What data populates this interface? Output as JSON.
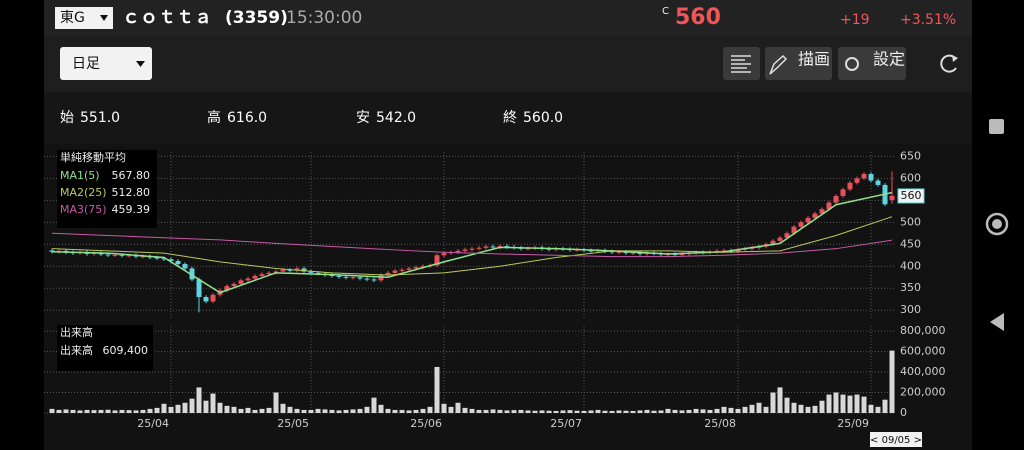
{
  "header": {
    "market": "東G",
    "name": "ｃｏｔｔａ",
    "code": "(3359)",
    "time": "15:30:00",
    "c_mark": "C",
    "price": "560",
    "change": "+19",
    "change_pct": "+3.51%"
  },
  "toolbar": {
    "period": "日足",
    "draw": "描画",
    "settings": "設定"
  },
  "ohlc": {
    "open_label": "始",
    "open": "551.0",
    "high_label": "高",
    "high": "616.0",
    "low_label": "安",
    "low": "542.0",
    "close_label": "終",
    "close": "560.0"
  },
  "chart_data": [
    {
      "type": "candlestick",
      "legend_title": "単純移動平均",
      "up_color": "#e8505b",
      "down_color": "#5fd3e0",
      "ylim": [
        280,
        660
      ],
      "yticks": [
        300,
        350,
        400,
        450,
        500,
        550,
        600,
        650
      ],
      "grid": true,
      "last_price": 560,
      "open": [
        436,
        433,
        435,
        432,
        430,
        432,
        428,
        430,
        427,
        425,
        426,
        424,
        425,
        422,
        423,
        420,
        418,
        416,
        412,
        405,
        395,
        370,
        330,
        320,
        335,
        345,
        355,
        360,
        368,
        372,
        378,
        382,
        385,
        388,
        392,
        390,
        395,
        388,
        385,
        383,
        380,
        378,
        376,
        374,
        375,
        372,
        370,
        368,
        380,
        385,
        390,
        392,
        395,
        398,
        400,
        402,
        425,
        430,
        432,
        435,
        438,
        440,
        442,
        445,
        443,
        446,
        444,
        442,
        440,
        441,
        443,
        440,
        438,
        440,
        439,
        437,
        438,
        436,
        435,
        436,
        434,
        432,
        433,
        430,
        431,
        428,
        430,
        429,
        427,
        428,
        426,
        428,
        430,
        432,
        431,
        433,
        435,
        436,
        434,
        438,
        440,
        442,
        445,
        450,
        458,
        465,
        475,
        490,
        500,
        510,
        520,
        530,
        545,
        560,
        575,
        590,
        600,
        610,
        595,
        585,
        551
      ],
      "high": [
        440,
        439,
        439,
        436,
        436,
        436,
        434,
        434,
        431,
        430,
        430,
        429,
        429,
        427,
        427,
        424,
        422,
        420,
        416,
        409,
        399,
        374,
        334,
        339,
        349,
        359,
        364,
        372,
        376,
        382,
        386,
        389,
        392,
        396,
        396,
        399,
        399,
        392,
        389,
        387,
        384,
        382,
        380,
        379,
        379,
        376,
        374,
        384,
        389,
        394,
        396,
        399,
        402,
        404,
        406,
        429,
        434,
        436,
        439,
        442,
        444,
        446,
        449,
        449,
        450,
        450,
        448,
        446,
        445,
        447,
        447,
        444,
        444,
        444,
        443,
        442,
        442,
        440,
        440,
        440,
        438,
        437,
        437,
        435,
        435,
        434,
        434,
        433,
        432,
        432,
        432,
        434,
        436,
        436,
        437,
        439,
        440,
        440,
        442,
        444,
        446,
        449,
        454,
        462,
        469,
        479,
        494,
        504,
        514,
        524,
        534,
        549,
        564,
        579,
        594,
        604,
        614,
        614,
        599,
        589,
        616
      ],
      "low": [
        429,
        429,
        428,
        426,
        426,
        424,
        424,
        423,
        421,
        421,
        420,
        420,
        418,
        418,
        416,
        414,
        412,
        408,
        401,
        391,
        366,
        295,
        316,
        316,
        331,
        341,
        351,
        356,
        364,
        368,
        374,
        378,
        381,
        384,
        386,
        386,
        384,
        381,
        379,
        376,
        374,
        372,
        370,
        370,
        368,
        366,
        364,
        364,
        376,
        381,
        386,
        388,
        391,
        394,
        396,
        398,
        421,
        426,
        428,
        431,
        434,
        436,
        438,
        439,
        439,
        440,
        438,
        436,
        436,
        437,
        436,
        434,
        434,
        435,
        433,
        433,
        432,
        431,
        431,
        430,
        428,
        428,
        426,
        426,
        424,
        424,
        425,
        423,
        423,
        422,
        422,
        424,
        426,
        427,
        427,
        429,
        431,
        430,
        430,
        434,
        436,
        438,
        441,
        446,
        454,
        461,
        471,
        486,
        496,
        506,
        516,
        526,
        541,
        556,
        571,
        586,
        596,
        591,
        581,
        537,
        542
      ],
      "close": [
        433,
        435,
        432,
        430,
        432,
        428,
        430,
        427,
        425,
        426,
        424,
        425,
        422,
        423,
        420,
        418,
        416,
        412,
        405,
        395,
        370,
        330,
        320,
        335,
        345,
        355,
        360,
        368,
        372,
        378,
        382,
        385,
        388,
        392,
        390,
        395,
        388,
        385,
        383,
        380,
        378,
        376,
        374,
        375,
        372,
        370,
        368,
        380,
        385,
        390,
        392,
        395,
        398,
        400,
        402,
        425,
        430,
        432,
        435,
        438,
        440,
        442,
        445,
        443,
        446,
        444,
        442,
        440,
        441,
        443,
        440,
        438,
        440,
        439,
        437,
        438,
        436,
        435,
        436,
        434,
        432,
        433,
        430,
        431,
        428,
        430,
        429,
        427,
        428,
        426,
        428,
        430,
        432,
        431,
        433,
        435,
        436,
        434,
        438,
        440,
        442,
        445,
        450,
        458,
        465,
        475,
        490,
        500,
        510,
        520,
        530,
        545,
        560,
        575,
        590,
        600,
        610,
        595,
        585,
        541,
        560
      ],
      "series": [
        {
          "name": "MA1(5)",
          "color": "#8fe08f",
          "last_label": "567.80",
          "x": [
            0,
            8,
            16,
            24,
            32,
            40,
            48,
            56,
            64,
            72,
            80,
            88,
            96,
            104,
            112,
            120
          ],
          "values": [
            433,
            430,
            420,
            340,
            385,
            381,
            375,
            410,
            443,
            440,
            435,
            428,
            433,
            452,
            540,
            567.8
          ]
        },
        {
          "name": "MA2(25)",
          "color": "#b9c95a",
          "last_label": "512.80",
          "x": [
            0,
            8,
            16,
            24,
            32,
            40,
            48,
            56,
            64,
            72,
            80,
            88,
            96,
            104,
            112,
            120
          ],
          "values": [
            440,
            435,
            430,
            410,
            395,
            385,
            380,
            385,
            400,
            420,
            435,
            435,
            432,
            435,
            470,
            512.8
          ]
        },
        {
          "name": "MA3(75)",
          "color": "#c85aa8",
          "last_label": "459.39",
          "x": [
            0,
            8,
            16,
            24,
            32,
            40,
            48,
            56,
            64,
            72,
            80,
            88,
            96,
            104,
            112,
            120
          ],
          "values": [
            475,
            470,
            465,
            460,
            452,
            445,
            438,
            432,
            428,
            425,
            422,
            422,
            425,
            430,
            440,
            459.39
          ]
        }
      ]
    },
    {
      "type": "bar",
      "legend_title": "出来高",
      "name": "出来高",
      "value_text": "609,400",
      "color": "#d8d8d8",
      "cursor_label": "< 09/05 >",
      "ylim": [
        0,
        850000
      ],
      "yticks": [
        {
          "value": 800000,
          "label": "800,000"
        },
        {
          "value": 600000,
          "label": "600,000"
        },
        {
          "value": 400000,
          "label": "400,000"
        },
        {
          "value": 200000,
          "label": "200,000"
        },
        0
      ],
      "grid": true,
      "categories": [
        null,
        null,
        null,
        null,
        null,
        null,
        null,
        null,
        null,
        null,
        null,
        null,
        null,
        null,
        null,
        null,
        null,
        "25/04",
        null,
        null,
        null,
        null,
        null,
        null,
        null,
        null,
        null,
        null,
        null,
        null,
        null,
        null,
        null,
        null,
        null,
        null,
        null,
        "25/05",
        null,
        null,
        null,
        null,
        null,
        null,
        null,
        null,
        null,
        null,
        null,
        null,
        null,
        null,
        null,
        null,
        null,
        null,
        "25/06",
        null,
        null,
        null,
        null,
        null,
        null,
        null,
        null,
        null,
        null,
        null,
        null,
        null,
        null,
        null,
        null,
        null,
        null,
        null,
        "25/07",
        null,
        null,
        null,
        null,
        null,
        null,
        null,
        null,
        null,
        null,
        null,
        null,
        null,
        null,
        null,
        null,
        null,
        null,
        null,
        null,
        null,
        "25/08",
        null,
        null,
        null,
        null,
        null,
        null,
        null,
        null,
        null,
        null,
        null,
        null,
        null,
        null,
        null,
        null,
        null,
        null,
        "25/09",
        null,
        null,
        null
      ],
      "values": [
        40000,
        30000,
        35000,
        30000,
        25000,
        30000,
        28000,
        30000,
        32000,
        25000,
        30000,
        28000,
        25000,
        30000,
        40000,
        50000,
        90000,
        60000,
        80000,
        100000,
        140000,
        250000,
        120000,
        190000,
        100000,
        70000,
        60000,
        40000,
        50000,
        30000,
        40000,
        50000,
        200000,
        90000,
        60000,
        40000,
        30000,
        30000,
        40000,
        35000,
        30000,
        25000,
        30000,
        35000,
        40000,
        60000,
        150000,
        80000,
        40000,
        30000,
        30000,
        25000,
        30000,
        40000,
        60000,
        450000,
        90000,
        60000,
        100000,
        50000,
        40000,
        30000,
        30000,
        35000,
        30000,
        25000,
        28000,
        30000,
        25000,
        22000,
        25000,
        22000,
        20000,
        25000,
        28000,
        22000,
        20000,
        25000,
        30000,
        22000,
        20000,
        25000,
        22000,
        20000,
        25000,
        30000,
        22000,
        25000,
        40000,
        30000,
        25000,
        30000,
        40000,
        35000,
        30000,
        40000,
        60000,
        50000,
        40000,
        60000,
        80000,
        100000,
        60000,
        200000,
        250000,
        150000,
        100000,
        80000,
        60000,
        70000,
        120000,
        180000,
        200000,
        180000,
        170000,
        180000,
        160000,
        80000,
        60000,
        130000,
        609400
      ]
    }
  ]
}
